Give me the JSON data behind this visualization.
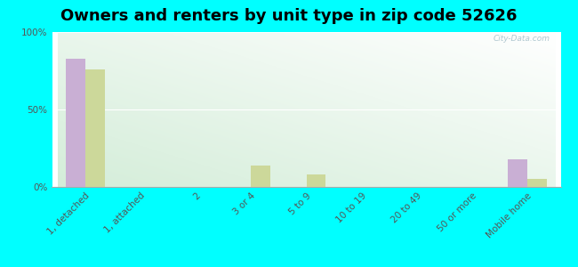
{
  "title": "Owners and renters by unit type in zip code 52626",
  "categories": [
    "1, detached",
    "1, attached",
    "2",
    "3 or 4",
    "5 to 9",
    "10 to 19",
    "20 to 49",
    "50 or more",
    "Mobile home"
  ],
  "owner_values": [
    83,
    0,
    0,
    0,
    0,
    0,
    0,
    0,
    18
  ],
  "renter_values": [
    76,
    0,
    0,
    14,
    8,
    0,
    0,
    0,
    5
  ],
  "owner_color": "#c9afd4",
  "renter_color": "#ccd89a",
  "background_color": "#00ffff",
  "plot_bg_color_top_left": "#d4edda",
  "plot_bg_color_bottom_right": "#f5fdf0",
  "ylim": [
    0,
    100
  ],
  "yticks": [
    0,
    50,
    100
  ],
  "ytick_labels": [
    "0%",
    "50%",
    "100%"
  ],
  "watermark": "City-Data.com",
  "title_fontsize": 13,
  "bar_width": 0.35,
  "tick_fontsize": 7.5
}
